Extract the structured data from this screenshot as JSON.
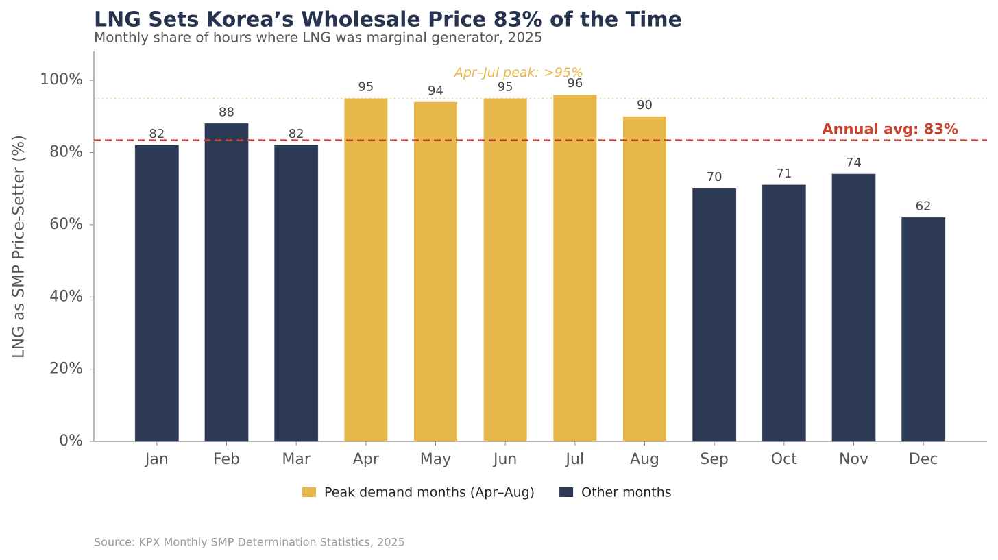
{
  "chart_data": {
    "type": "bar",
    "title": "LNG Sets Korea’s Wholesale Price 83% of the Time",
    "subtitle": "Monthly share of hours where LNG was marginal generator, 2025",
    "y_label": "LNG as SMP Price-Setter (%)",
    "categories": [
      "Jan",
      "Feb",
      "Mar",
      "Apr",
      "May",
      "Jun",
      "Jul",
      "Aug",
      "Sep",
      "Oct",
      "Nov",
      "Dec"
    ],
    "values": [
      82,
      88,
      82,
      95,
      94,
      95,
      96,
      90,
      70,
      71,
      74,
      62
    ],
    "colors": [
      "#2d3a55",
      "#2d3a55",
      "#2d3a55",
      "#e6b84b",
      "#e6b84b",
      "#e6b84b",
      "#e6b84b",
      "#e6b84b",
      "#2d3a55",
      "#2d3a55",
      "#2d3a55",
      "#2d3a55"
    ],
    "legend": [
      {
        "name": "Peak demand months (Apr–Aug)",
        "color": "#e6b84b"
      },
      {
        "name": "Other months",
        "color": "#2d3a55"
      }
    ],
    "ylim": [
      0,
      108
    ],
    "yticks": [
      {
        "value": 0,
        "label": "0%"
      },
      {
        "value": 20,
        "label": "20%"
      },
      {
        "value": 40,
        "label": "40%"
      },
      {
        "value": 60,
        "label": "60%"
      },
      {
        "value": 80,
        "label": "80%"
      },
      {
        "value": 100,
        "label": "100%"
      }
    ],
    "avg_line": {
      "value": 83.4,
      "label": "Annual avg: 83%",
      "color": "#c8402e"
    },
    "peak_line": {
      "value": 95,
      "label": "Apr–Jul peak: >95%",
      "color": "#e6b84b"
    },
    "source": "Source: KPX Monthly SMP Determination Statistics, 2025"
  }
}
